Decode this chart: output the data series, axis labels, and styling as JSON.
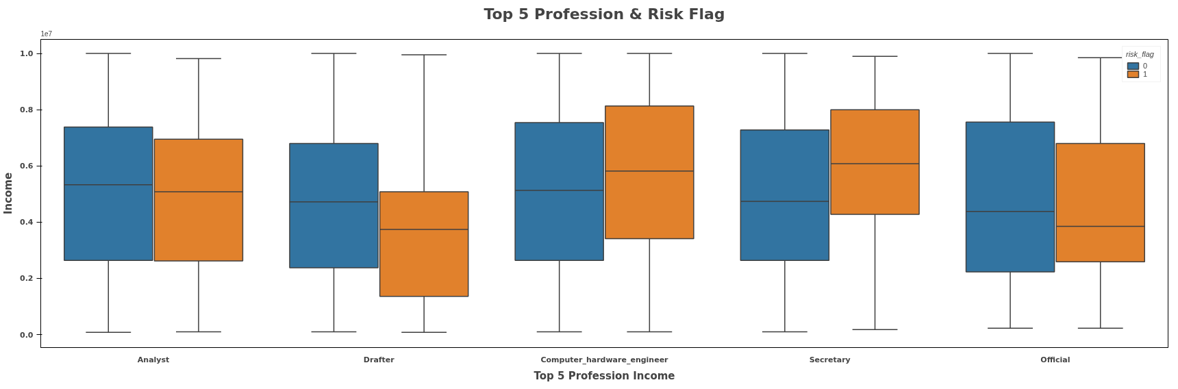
{
  "chart_data": {
    "type": "box",
    "title": "Top 5 Profession & Risk Flag",
    "xlabel": "Top 5 Profession Income",
    "ylabel": "Income",
    "legend_title": "risk_flag",
    "legend": "top right",
    "grid": false,
    "annotations": [
      "1e7"
    ],
    "categories": [
      "Analyst",
      "Drafter",
      "Computer_hardware_engineer",
      "Secretary",
      "Official"
    ],
    "ylim": [
      -0.046,
      1.05
    ],
    "yticks": [
      {
        "value": 0,
        "label": "0.0"
      },
      {
        "value": 0.2,
        "label": "0.2"
      },
      {
        "value": 0.4,
        "label": "0.4"
      },
      {
        "value": 0.6,
        "label": "0.6"
      },
      {
        "value": 0.8,
        "label": "0.8"
      },
      {
        "value": 1.0,
        "label": "1.0"
      }
    ],
    "series": [
      {
        "name": "0",
        "color": "#3274a1",
        "boxes": [
          {
            "low": 0.008,
            "q1": 0.264,
            "median": 0.533,
            "q3": 0.738,
            "high": 1.0
          },
          {
            "low": 0.01,
            "q1": 0.238,
            "median": 0.472,
            "q3": 0.68,
            "high": 1.0
          },
          {
            "low": 0.01,
            "q1": 0.264,
            "median": 0.513,
            "q3": 0.754,
            "high": 1.0
          },
          {
            "low": 0.01,
            "q1": 0.264,
            "median": 0.474,
            "q3": 0.728,
            "high": 1.0
          },
          {
            "low": 0.023,
            "q1": 0.223,
            "median": 0.438,
            "q3": 0.756,
            "high": 1.0
          }
        ]
      },
      {
        "name": "1",
        "color": "#e1812c",
        "boxes": [
          {
            "low": 0.01,
            "q1": 0.262,
            "median": 0.508,
            "q3": 0.695,
            "high": 0.982
          },
          {
            "low": 0.008,
            "q1": 0.136,
            "median": 0.374,
            "q3": 0.508,
            "high": 0.995
          },
          {
            "low": 0.01,
            "q1": 0.341,
            "median": 0.582,
            "q3": 0.813,
            "high": 1.0
          },
          {
            "low": 0.018,
            "q1": 0.428,
            "median": 0.608,
            "q3": 0.8,
            "high": 0.99
          },
          {
            "low": 0.023,
            "q1": 0.259,
            "median": 0.385,
            "q3": 0.68,
            "high": 0.985
          }
        ]
      }
    ]
  }
}
